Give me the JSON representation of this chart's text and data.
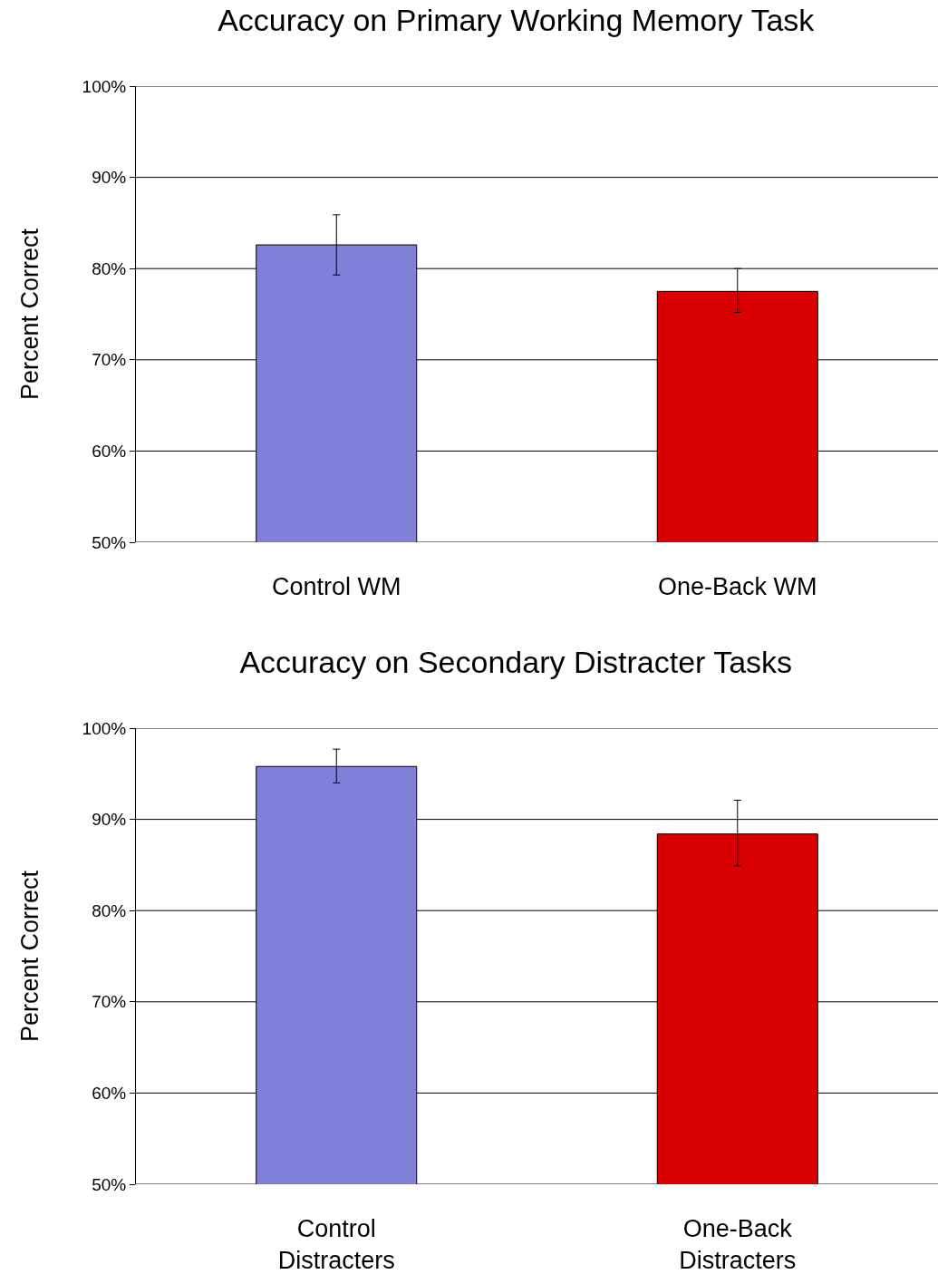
{
  "chart_data": [
    {
      "type": "bar",
      "title": "Accuracy on Primary Working Memory Task",
      "ylabel": "Percent Correct",
      "categories": [
        "Control WM",
        "One-Back WM"
      ],
      "values": [
        82.6,
        77.5
      ],
      "colors": [
        "#8080d8",
        "#d80000"
      ],
      "errors": [
        [
          79.3,
          85.9
        ],
        [
          75.2,
          80.0
        ]
      ],
      "ylim": [
        50,
        100
      ],
      "yticks": [
        {
          "value": 50,
          "label": "50%"
        },
        {
          "value": 60,
          "label": "60%"
        },
        {
          "value": 70,
          "label": "70%"
        },
        {
          "value": 80,
          "label": "80%"
        },
        {
          "value": 90,
          "label": "90%"
        },
        {
          "value": 100,
          "label": "100%"
        }
      ],
      "grid": "y"
    },
    {
      "type": "bar",
      "title": "Accuracy on Secondary Distracter Tasks",
      "ylabel": "Percent Correct",
      "categories": [
        "Control Distracters",
        "One-Back Distracters"
      ],
      "values": [
        95.8,
        88.4
      ],
      "colors": [
        "#8080d8",
        "#d80000"
      ],
      "errors": [
        [
          94.0,
          97.7
        ],
        [
          84.9,
          92.1
        ]
      ],
      "ylim": [
        50,
        100
      ],
      "yticks": [
        {
          "value": 50,
          "label": "50%"
        },
        {
          "value": 60,
          "label": "60%"
        },
        {
          "value": 70,
          "label": "70%"
        },
        {
          "value": 80,
          "label": "80%"
        },
        {
          "value": 90,
          "label": "90%"
        },
        {
          "value": 100,
          "label": "100%"
        }
      ],
      "grid": "y"
    }
  ]
}
